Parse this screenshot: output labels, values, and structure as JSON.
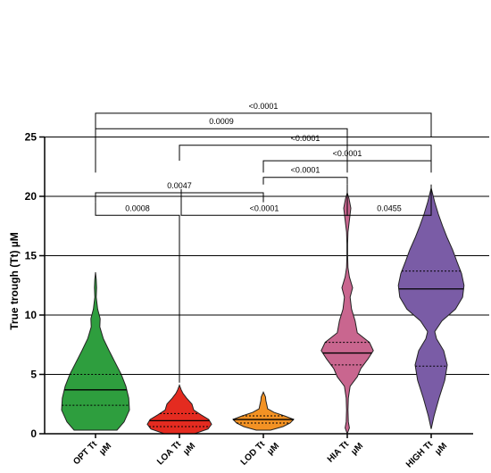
{
  "chart_data": {
    "type": "violin",
    "ylabel": "True trough (Tt) µM",
    "ylim": [
      0,
      25
    ],
    "yticks": [
      "0",
      "5",
      "10",
      "15",
      "20",
      "25"
    ],
    "grid": "horizontal",
    "categories": [
      {
        "line1": "OPT Tt",
        "line2": "µM"
      },
      {
        "line1": "LOA Tt",
        "line2": "µM"
      },
      {
        "line1": "LOD Tt",
        "line2": "µM"
      },
      {
        "line1": "HIA Tt",
        "line2": "µM"
      },
      {
        "line1": "HIGH Tt",
        "line2": "µM"
      }
    ],
    "series": [
      {
        "category": "OPT Tt",
        "color": "#2e9e3e",
        "min": 0.3,
        "max": 13.6,
        "median": 3.7,
        "q1": 2.4,
        "q3": 5.0,
        "profile": [
          [
            0.3,
            0.6
          ],
          [
            1,
            0.8
          ],
          [
            2,
            0.95
          ],
          [
            3,
            0.93
          ],
          [
            4,
            0.85
          ],
          [
            5,
            0.72
          ],
          [
            6,
            0.55
          ],
          [
            7,
            0.38
          ],
          [
            8,
            0.22
          ],
          [
            9,
            0.12
          ],
          [
            9.7,
            0.13
          ],
          [
            10.5,
            0.06
          ],
          [
            11.5,
            0.02
          ],
          [
            12.3,
            0.03
          ],
          [
            13,
            0.02
          ],
          [
            13.6,
            0.0
          ]
        ]
      },
      {
        "category": "LOA Tt",
        "color": "#e42b20",
        "min": 0.0,
        "max": 4.1,
        "median": 1.1,
        "q1": 0.6,
        "q3": 1.7,
        "profile": [
          [
            0,
            0.42
          ],
          [
            0.4,
            0.8
          ],
          [
            0.8,
            0.9
          ],
          [
            1.2,
            0.82
          ],
          [
            1.6,
            0.6
          ],
          [
            2.0,
            0.4
          ],
          [
            2.5,
            0.35
          ],
          [
            3.0,
            0.2
          ],
          [
            3.4,
            0.1
          ],
          [
            3.7,
            0.05
          ],
          [
            4.1,
            0.0
          ]
        ]
      },
      {
        "category": "LOD Tt",
        "color": "#f39224",
        "min": 0.3,
        "max": 3.5,
        "median": 1.2,
        "q1": 0.9,
        "q3": 1.5,
        "profile": [
          [
            0.3,
            0.2
          ],
          [
            0.6,
            0.55
          ],
          [
            0.9,
            0.75
          ],
          [
            1.2,
            0.85
          ],
          [
            1.5,
            0.6
          ],
          [
            1.8,
            0.3
          ],
          [
            2.1,
            0.12
          ],
          [
            2.4,
            0.1
          ],
          [
            2.8,
            0.07
          ],
          [
            3.1,
            0.06
          ],
          [
            3.5,
            0.0
          ]
        ]
      },
      {
        "category": "HIA Tt",
        "color": "#c9668f",
        "min": 0.0,
        "max": 20.3,
        "median": 6.8,
        "q1": 5.8,
        "q3": 7.7,
        "profile": [
          [
            0,
            0.0
          ],
          [
            0.5,
            0.06
          ],
          [
            1.0,
            0.03
          ],
          [
            2,
            0.02
          ],
          [
            3,
            0.03
          ],
          [
            4,
            0.08
          ],
          [
            4.8,
            0.28
          ],
          [
            5.5,
            0.38
          ],
          [
            6.3,
            0.58
          ],
          [
            7.0,
            0.73
          ],
          [
            7.7,
            0.62
          ],
          [
            8.5,
            0.28
          ],
          [
            9.5,
            0.22
          ],
          [
            10.5,
            0.12
          ],
          [
            11.5,
            0.08
          ],
          [
            12.3,
            0.15
          ],
          [
            13.2,
            0.06
          ],
          [
            14,
            0.02
          ],
          [
            15,
            0.01
          ],
          [
            16,
            0.01
          ],
          [
            17,
            0.02
          ],
          [
            18.0,
            0.06
          ],
          [
            19.0,
            0.1
          ],
          [
            19.8,
            0.05
          ],
          [
            20.3,
            0.0
          ]
        ]
      },
      {
        "category": "HIGH Tt",
        "color": "#7a5ca6",
        "min": 0.4,
        "max": 20.7,
        "median": 12.2,
        "q1": 5.7,
        "q3": 13.7,
        "profile": [
          [
            0.4,
            0.0
          ],
          [
            1.5,
            0.08
          ],
          [
            3,
            0.22
          ],
          [
            4.5,
            0.38
          ],
          [
            5.8,
            0.45
          ],
          [
            7,
            0.35
          ],
          [
            8,
            0.15
          ],
          [
            8.6,
            0.1
          ],
          [
            9.5,
            0.3
          ],
          [
            10.5,
            0.68
          ],
          [
            11.5,
            0.88
          ],
          [
            12.5,
            0.92
          ],
          [
            13.5,
            0.85
          ],
          [
            14.5,
            0.72
          ],
          [
            15.5,
            0.6
          ],
          [
            16.5,
            0.45
          ],
          [
            17.5,
            0.32
          ],
          [
            18.5,
            0.2
          ],
          [
            19.5,
            0.1
          ],
          [
            20.7,
            0.0
          ]
        ]
      }
    ],
    "comparisons": [
      {
        "a": 0,
        "b": 4,
        "label": "<0.0001",
        "y": 27.0,
        "yb": 25.0
      },
      {
        "a": 0,
        "b": 3,
        "label": "0.0009",
        "y": 25.7,
        "yb": 22.0
      },
      {
        "a": 1,
        "b": 4,
        "label": "<0.0001",
        "y": 24.3,
        "yb": 23.0
      },
      {
        "a": 2,
        "b": 4,
        "label": "<0.0001",
        "y": 23.0,
        "yb": 22.0
      },
      {
        "a": 2,
        "b": 3,
        "label": "<0.0001",
        "y": 21.6,
        "yb": 21.0
      },
      {
        "a": 0,
        "b": 2,
        "label": "0.0047",
        "y": 20.3,
        "yb": 19.5
      },
      {
        "a": 0,
        "b": 1,
        "label": "0.0008",
        "y": 18.4,
        "yb": 4.3
      },
      {
        "a": 1,
        "b": 3,
        "label": "<0.0001",
        "y": 18.4,
        "yb": 20.6
      },
      {
        "a": 3,
        "b": 4,
        "label": "0.0455",
        "y": 18.4,
        "yb": 21.0
      }
    ]
  }
}
